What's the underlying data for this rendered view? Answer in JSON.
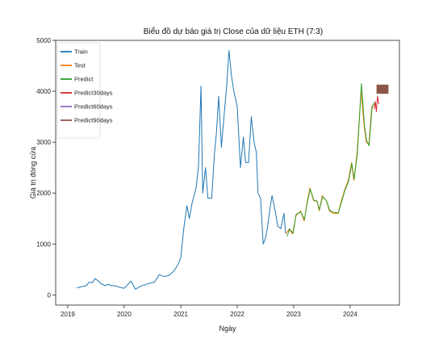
{
  "chart_data": {
    "type": "line",
    "title": "Biểu đồ dự báo giá trị Close của dữ liệu ETH (7:3)",
    "xlabel": "Ngày",
    "ylabel": "Giá trị đóng cửa",
    "x_range": [
      "2018-10-15",
      "2024-11-15"
    ],
    "ylim": [
      -200,
      5000
    ],
    "x_ticks": [
      "2019",
      "2020",
      "2021",
      "2022",
      "2023",
      "2024"
    ],
    "y_ticks": [
      0,
      1000,
      2000,
      3000,
      4000,
      5000
    ],
    "grid": false,
    "legend_position": "top-left",
    "series": [
      {
        "name": "Train",
        "color": "#1f77b4",
        "points": [
          [
            "2019-03-01",
            140
          ],
          [
            "2019-03-20",
            150
          ],
          [
            "2019-04-10",
            170
          ],
          [
            "2019-05-01",
            180
          ],
          [
            "2019-05-20",
            250
          ],
          [
            "2019-06-10",
            240
          ],
          [
            "2019-06-26",
            320
          ],
          [
            "2019-07-15",
            280
          ],
          [
            "2019-08-05",
            220
          ],
          [
            "2019-09-01",
            180
          ],
          [
            "2019-09-20",
            210
          ],
          [
            "2019-10-10",
            180
          ],
          [
            "2019-11-01",
            180
          ],
          [
            "2019-12-01",
            150
          ],
          [
            "2020-01-01",
            130
          ],
          [
            "2020-02-15",
            270
          ],
          [
            "2020-03-13",
            110
          ],
          [
            "2020-04-15",
            170
          ],
          [
            "2020-05-15",
            200
          ],
          [
            "2020-06-15",
            230
          ],
          [
            "2020-07-15",
            250
          ],
          [
            "2020-08-15",
            400
          ],
          [
            "2020-09-15",
            360
          ],
          [
            "2020-10-15",
            380
          ],
          [
            "2020-11-15",
            460
          ],
          [
            "2020-12-15",
            600
          ],
          [
            "2021-01-01",
            730
          ],
          [
            "2021-01-20",
            1300
          ],
          [
            "2021-02-10",
            1750
          ],
          [
            "2021-02-25",
            1500
          ],
          [
            "2021-03-15",
            1800
          ],
          [
            "2021-04-10",
            2100
          ],
          [
            "2021-04-25",
            2500
          ],
          [
            "2021-05-12",
            4100
          ],
          [
            "2021-05-23",
            2000
          ],
          [
            "2021-06-10",
            2500
          ],
          [
            "2021-06-25",
            1900
          ],
          [
            "2021-07-20",
            1900
          ],
          [
            "2021-08-05",
            2700
          ],
          [
            "2021-08-20",
            3200
          ],
          [
            "2021-09-03",
            3900
          ],
          [
            "2021-09-21",
            2900
          ],
          [
            "2021-10-10",
            3600
          ],
          [
            "2021-10-25",
            4100
          ],
          [
            "2021-11-09",
            4800
          ],
          [
            "2021-11-25",
            4300
          ],
          [
            "2021-12-10",
            4000
          ],
          [
            "2022-01-01",
            3700
          ],
          [
            "2022-01-22",
            2500
          ],
          [
            "2022-02-10",
            3100
          ],
          [
            "2022-02-24",
            2600
          ],
          [
            "2022-03-15",
            2600
          ],
          [
            "2022-04-02",
            3500
          ],
          [
            "2022-04-20",
            3000
          ],
          [
            "2022-05-05",
            2800
          ],
          [
            "2022-05-15",
            2000
          ],
          [
            "2022-06-01",
            1900
          ],
          [
            "2022-06-18",
            1000
          ],
          [
            "2022-07-01",
            1100
          ],
          [
            "2022-07-15",
            1300
          ],
          [
            "2022-08-01",
            1700
          ],
          [
            "2022-08-14",
            1950
          ],
          [
            "2022-09-07",
            1600
          ],
          [
            "2022-09-20",
            1350
          ],
          [
            "2022-10-10",
            1300
          ],
          [
            "2022-10-30",
            1600
          ],
          [
            "2022-11-10",
            1200
          ]
        ]
      },
      {
        "name": "Test",
        "color": "#ff7f0e",
        "points": [
          [
            "2022-11-10",
            1200
          ],
          [
            "2022-12-01",
            1280
          ],
          [
            "2022-12-25",
            1200
          ],
          [
            "2023-01-15",
            1550
          ],
          [
            "2023-02-15",
            1650
          ],
          [
            "2023-03-10",
            1450
          ],
          [
            "2023-03-25",
            1750
          ],
          [
            "2023-04-16",
            2100
          ],
          [
            "2023-05-10",
            1850
          ],
          [
            "2023-06-01",
            1850
          ],
          [
            "2023-06-15",
            1650
          ],
          [
            "2023-07-05",
            1950
          ],
          [
            "2023-08-01",
            1850
          ],
          [
            "2023-08-20",
            1650
          ],
          [
            "2023-09-15",
            1600
          ],
          [
            "2023-10-15",
            1600
          ],
          [
            "2023-11-01",
            1800
          ],
          [
            "2023-11-25",
            2050
          ],
          [
            "2023-12-20",
            2250
          ],
          [
            "2024-01-10",
            2600
          ],
          [
            "2024-01-25",
            2250
          ],
          [
            "2024-02-15",
            2800
          ],
          [
            "2024-03-12",
            4000
          ],
          [
            "2024-04-01",
            3300
          ],
          [
            "2024-04-15",
            3000
          ],
          [
            "2024-05-01",
            2950
          ],
          [
            "2024-05-20",
            3700
          ],
          [
            "2024-06-05",
            3750
          ]
        ]
      },
      {
        "name": "Predict",
        "color": "#2ca02c",
        "points": [
          [
            "2022-11-20",
            1150
          ],
          [
            "2022-12-05",
            1300
          ],
          [
            "2022-12-28",
            1210
          ],
          [
            "2023-01-17",
            1580
          ],
          [
            "2023-02-17",
            1630
          ],
          [
            "2023-03-12",
            1480
          ],
          [
            "2023-03-27",
            1760
          ],
          [
            "2023-04-18",
            2080
          ],
          [
            "2023-05-12",
            1860
          ],
          [
            "2023-06-03",
            1830
          ],
          [
            "2023-06-17",
            1670
          ],
          [
            "2023-07-07",
            1930
          ],
          [
            "2023-08-03",
            1840
          ],
          [
            "2023-08-22",
            1660
          ],
          [
            "2023-09-17",
            1620
          ],
          [
            "2023-10-17",
            1610
          ],
          [
            "2023-11-03",
            1790
          ],
          [
            "2023-11-27",
            2040
          ],
          [
            "2023-12-22",
            2230
          ],
          [
            "2024-01-12",
            2580
          ],
          [
            "2024-01-27",
            2270
          ],
          [
            "2024-02-17",
            2780
          ],
          [
            "2024-03-14",
            4150
          ],
          [
            "2024-04-03",
            3320
          ],
          [
            "2024-04-17",
            3030
          ],
          [
            "2024-05-03",
            2930
          ],
          [
            "2024-05-22",
            3680
          ],
          [
            "2024-06-07",
            3780
          ]
        ]
      },
      {
        "name": "Predict30days",
        "color": "#d62728",
        "points": [
          [
            "2024-06-05",
            3650
          ],
          [
            "2024-06-12",
            3800
          ],
          [
            "2024-06-19",
            3600
          ],
          [
            "2024-06-26",
            3900
          ],
          [
            "2024-07-05",
            3750
          ]
        ]
      },
      {
        "name": "Predict60days",
        "color": "#9467bd",
        "points": [
          [
            "2024-07-05",
            4000
          ],
          [
            "2024-07-20",
            4050
          ],
          [
            "2024-08-04",
            4000
          ]
        ]
      },
      {
        "name": "Predict90days",
        "color": "#8c564b",
        "band": true,
        "x_start": "2024-06-20",
        "x_end": "2024-09-05",
        "y_low": 3950,
        "y_high": 4130
      }
    ]
  }
}
